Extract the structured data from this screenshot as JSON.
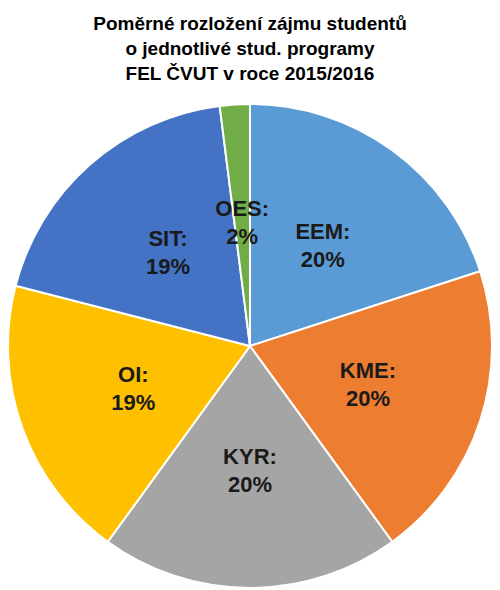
{
  "chart_data": {
    "type": "pie",
    "title": "Poměrné rozložení zájmu studentů\no jednotlivé stud. programy\nFEL ČVUT v roce 2015/2016",
    "categories": [
      "EEM:",
      "KME:",
      "KYR:",
      "OI:",
      "SIT:",
      "OES:"
    ],
    "values": [
      20,
      20,
      20,
      19,
      19,
      2
    ],
    "value_labels": [
      "20%",
      "20%",
      "20%",
      "19%",
      "19%",
      "2%"
    ],
    "colors": [
      "#5b9bd5",
      "#ed7d31",
      "#a5a5a5",
      "#ffc000",
      "#4472c4",
      "#70ad47"
    ],
    "data_labels": true
  }
}
